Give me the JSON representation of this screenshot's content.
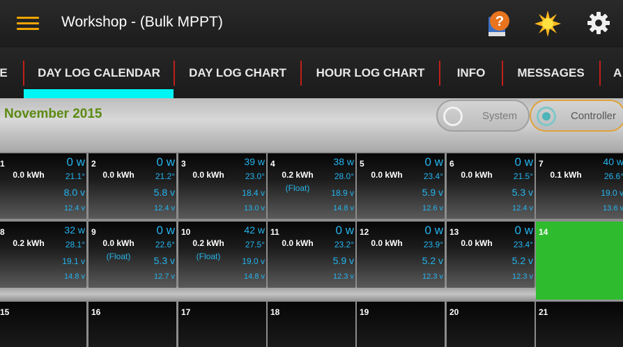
{
  "app_bar": {
    "title": "Workshop - (Bulk MPPT)",
    "menu_icon": "hamburger-menu-icon",
    "help_icon": "help-book-icon",
    "sun_icon": "sun-icon",
    "settings_icon": "gear-icon",
    "accent_color": "#f0a500"
  },
  "tabs": [
    {
      "label": "E"
    },
    {
      "label": "DAY LOG CALENDAR",
      "selected": true
    },
    {
      "label": "DAY LOG CHART"
    },
    {
      "label": "HOUR LOG CHART"
    },
    {
      "label": "INFO"
    },
    {
      "label": "MESSAGES"
    },
    {
      "label": "A"
    }
  ],
  "tab_indicator_color": "#00f4f4",
  "month": {
    "title": "November 2015",
    "title_color": "#5c8a12"
  },
  "source_toggle": {
    "system_label": "System",
    "controller_label": "Controller",
    "selected": "Controller"
  },
  "week1": [
    {
      "day": "1",
      "kwh": "0.0 kWh",
      "mode": "",
      "watts": "0 w",
      "temp": "21.1°",
      "volt1": "8.0 v",
      "volt2": "12.4 v"
    },
    {
      "day": "2",
      "kwh": "0.0 kWh",
      "mode": "",
      "watts": "0 w",
      "temp": "21.2°",
      "volt1": "5.8 v",
      "volt2": "12.4 v"
    },
    {
      "day": "3",
      "kwh": "0.0 kWh",
      "mode": "",
      "watts": "39 w",
      "temp": "23.0°",
      "volt1": "18.4 v",
      "volt2": "13.0 v"
    },
    {
      "day": "4",
      "kwh": "0.2 kWh",
      "mode": "(Float)",
      "watts": "38 w",
      "temp": "28.0°",
      "volt1": "18.9 v",
      "volt2": "14.8 v"
    },
    {
      "day": "5",
      "kwh": "0.0 kWh",
      "mode": "",
      "watts": "0 w",
      "temp": "23.4°",
      "volt1": "5.9 v",
      "volt2": "12.6 v"
    },
    {
      "day": "6",
      "kwh": "0.0 kWh",
      "mode": "",
      "watts": "0 w",
      "temp": "21.5°",
      "volt1": "5.3 v",
      "volt2": "12.4 v"
    },
    {
      "day": "7",
      "kwh": "0.1 kWh",
      "mode": "",
      "watts": "40 w",
      "temp": "26.6°",
      "volt1": "19.0 v",
      "volt2": "13.6 v"
    }
  ],
  "week2": [
    {
      "day": "8",
      "kwh": "0.2 kWh",
      "mode": "",
      "watts": "32 w",
      "temp": "28.1°",
      "volt1": "19.1 v",
      "volt2": "14.8 v"
    },
    {
      "day": "9",
      "kwh": "0.0 kWh",
      "mode": "(Float)",
      "watts": "0 w",
      "temp": "22.6°",
      "volt1": "5.3 v",
      "volt2": "12.7 v"
    },
    {
      "day": "10",
      "kwh": "0.2 kWh",
      "mode": "(Float)",
      "watts": "42 w",
      "temp": "27.5°",
      "volt1": "19.0 v",
      "volt2": "14.8 v"
    },
    {
      "day": "11",
      "kwh": "0.0 kWh",
      "mode": "",
      "watts": "0 w",
      "temp": "23.2°",
      "volt1": "5.9 v",
      "volt2": "12.3 v"
    },
    {
      "day": "12",
      "kwh": "0.0 kWh",
      "mode": "",
      "watts": "0 w",
      "temp": "23.9°",
      "volt1": "5.2 v",
      "volt2": "12.3 v"
    },
    {
      "day": "13",
      "kwh": "0.0 kWh",
      "mode": "",
      "watts": "0 w",
      "temp": "23.4°",
      "volt1": "5.2 v",
      "volt2": "12.3 v"
    },
    {
      "day": "14",
      "today": true
    }
  ],
  "week3": [
    {
      "day": "15"
    },
    {
      "day": "16"
    },
    {
      "day": "17"
    },
    {
      "day": "18"
    },
    {
      "day": "19"
    },
    {
      "day": "20"
    },
    {
      "day": "21"
    }
  ],
  "today_color": "#2ebc2e",
  "value_color": "#24b5f0"
}
